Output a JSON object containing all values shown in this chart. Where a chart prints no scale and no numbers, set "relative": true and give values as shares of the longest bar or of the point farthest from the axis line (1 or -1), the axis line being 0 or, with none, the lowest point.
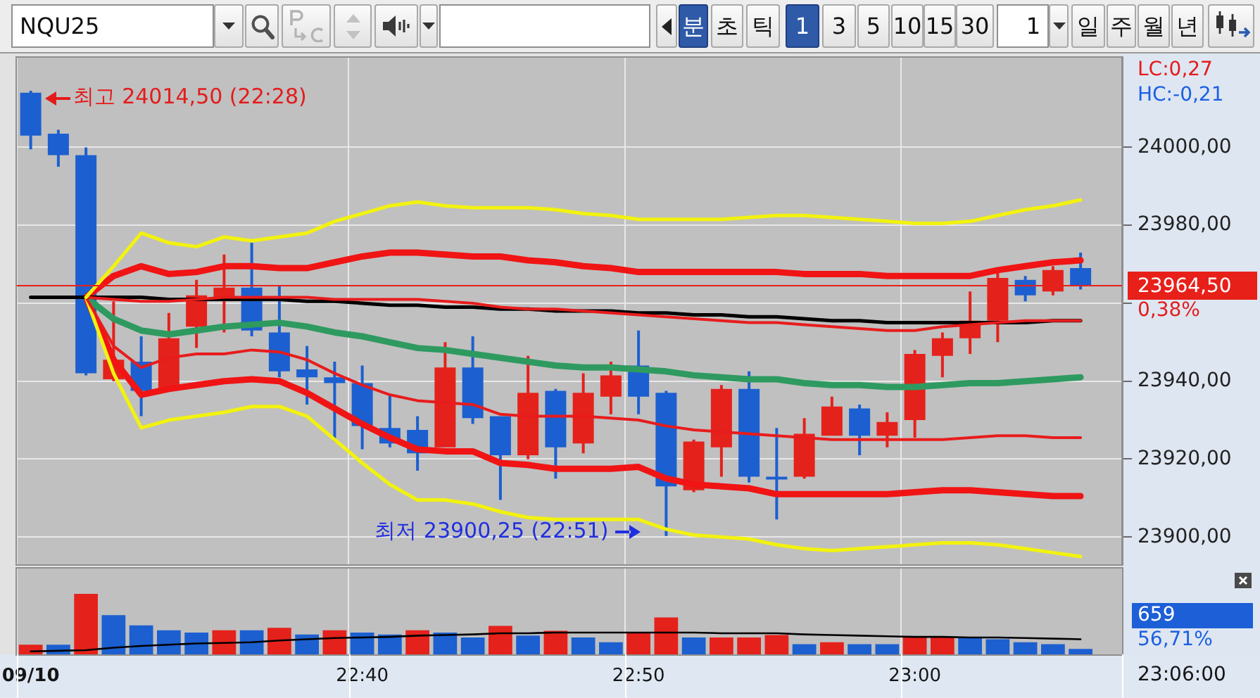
{
  "chart_data": [
    {
      "type": "other",
      "annotations": [
        "NQU25",
        "분",
        "초",
        "틱",
        "1",
        "3",
        "5",
        "10",
        "15",
        "30",
        "1",
        "일",
        "주",
        "월",
        "년"
      ]
    },
    {
      "type": "candlestick",
      "categories": [
        "09/10",
        null,
        null,
        null,
        null,
        null,
        null,
        null,
        null,
        null,
        null,
        null,
        "22:40",
        null,
        null,
        null,
        null,
        null,
        null,
        null,
        null,
        null,
        "22:50",
        null,
        null,
        null,
        null,
        null,
        null,
        null,
        null,
        null,
        "23:00",
        null,
        null,
        null,
        null,
        null,
        null,
        null
      ],
      "ohlc": [
        [
          24014,
          24014.5,
          23999.5,
          24003
        ],
        [
          24003.5,
          24004.5,
          23995,
          23998
        ],
        [
          23998,
          24000,
          23941.5,
          23942
        ],
        [
          23940.5,
          23960.5,
          23940,
          23945.5
        ],
        [
          23945,
          23951.5,
          23931,
          23937.5
        ],
        [
          23938,
          23957.5,
          23938,
          23951
        ],
        [
          23954,
          23966,
          23948.5,
          23962
        ],
        [
          23961,
          23972.5,
          23952.5,
          23964
        ],
        [
          23964,
          23975.5,
          23951.5,
          23953
        ],
        [
          23952.5,
          23964.5,
          23941,
          23942.5
        ],
        [
          23943,
          23949,
          23934,
          23941
        ],
        [
          23941,
          23945,
          23924.5,
          23939.5
        ],
        [
          23939.5,
          23944,
          23922.5,
          23928.5
        ],
        [
          23928,
          23936.5,
          23923,
          23924
        ],
        [
          23927.5,
          23931,
          23917,
          23921.5
        ],
        [
          23923,
          23950,
          23923,
          23943.5
        ],
        [
          23943.5,
          23951.5,
          23929,
          23930.5
        ],
        [
          23931,
          23931,
          23909.5,
          23921
        ],
        [
          23921,
          23946.5,
          23920,
          23937
        ],
        [
          23937.5,
          23938,
          23915,
          23923
        ],
        [
          23924,
          23942,
          23921.5,
          23937
        ],
        [
          23936,
          23945,
          23931.5,
          23941.5
        ],
        [
          23944,
          23953,
          23931.5,
          23936
        ],
        [
          23937,
          23937.5,
          23900.25,
          23913
        ],
        [
          23912,
          23925,
          23911.5,
          23924.5
        ],
        [
          23923,
          23939,
          23915.5,
          23938
        ],
        [
          23938,
          23942.5,
          23914,
          23915.5
        ],
        [
          23915.5,
          23928,
          23904.5,
          23915
        ],
        [
          23915.5,
          23930.5,
          23915,
          23926.5
        ],
        [
          23926,
          23936,
          23926,
          23933.5
        ],
        [
          23933,
          23934,
          23921,
          23926
        ],
        [
          23926,
          23932,
          23923,
          23929.5
        ],
        [
          23930,
          23948,
          23925.5,
          23947
        ],
        [
          23946.5,
          23952.5,
          23941,
          23951
        ],
        [
          23951,
          23963,
          23947,
          23955.5
        ],
        [
          23955.5,
          23968,
          23950,
          23966.5
        ],
        [
          23966,
          23967,
          23960.5,
          23962
        ],
        [
          23963,
          23969.5,
          23962,
          23968.5
        ],
        [
          23969,
          23973,
          23963.5,
          23964.5
        ],
        null
      ],
      "colors": [
        "#1c5fd0",
        "#1c5fd0",
        "#1c5fd0",
        "#e5211b",
        "#1c5fd0",
        "#e5211b",
        "#e5211b",
        "#e5211b",
        "#1c5fd0",
        "#1c5fd0",
        "#1c5fd0",
        "#1c5fd0",
        "#1c5fd0",
        "#1c5fd0",
        "#1c5fd0",
        "#e5211b",
        "#1c5fd0",
        "#1c5fd0",
        "#e5211b",
        "#1c5fd0",
        "#e5211b",
        "#e5211b",
        "#1c5fd0",
        "#1c5fd0",
        "#e5211b",
        "#e5211b",
        "#1c5fd0",
        "#1c5fd0",
        "#e5211b",
        "#e5211b",
        "#1c5fd0",
        "#e5211b",
        "#e5211b",
        "#e5211b",
        "#e5211b",
        "#e5211b",
        "#1c5fd0",
        "#e5211b",
        "#1c5fd0",
        null
      ],
      "series": [
        {
          "type": "line",
          "color": "#f2f20f",
          "values": [
            null,
            null,
            23961.5,
            23969.5,
            23978,
            23975.5,
            23974.5,
            23977,
            23976,
            23977,
            23978,
            23981,
            23983,
            23985,
            23986,
            23985,
            23984.5,
            23984.5,
            23984.5,
            23984,
            23983,
            23982.5,
            23981.5,
            23981.5,
            23981.5,
            23981.5,
            23982,
            23982.5,
            23982.5,
            23982,
            23981.5,
            23981,
            23980.5,
            23980.5,
            23981,
            23982.5,
            23984,
            23985,
            23986.5,
            null
          ]
        },
        {
          "type": "line",
          "color": "#f01414",
          "values": [
            null,
            null,
            23961.5,
            23967,
            23969.5,
            23967.5,
            23968,
            23969.5,
            23969.5,
            23969,
            23969,
            23970.5,
            23972,
            23973,
            23973,
            23972.5,
            23972,
            23972,
            23971,
            23970.5,
            23969.5,
            23969,
            23968,
            23968,
            23968,
            23968,
            23968,
            23968,
            23967.5,
            23967.5,
            23967.5,
            23967,
            23967,
            23967,
            23967,
            23968.5,
            23969.5,
            23970.5,
            23971,
            null
          ]
        },
        {
          "type": "line",
          "color": "#e81c1c",
          "values": [
            null,
            null,
            23961.5,
            23961,
            23960.5,
            23960.5,
            23961,
            23961.5,
            23961.5,
            23961.5,
            23961.5,
            23961,
            23961,
            23961,
            23961,
            23960.5,
            23960,
            23959,
            23958.5,
            23958.5,
            23958,
            23957.5,
            23957,
            23956.5,
            23956,
            23955.5,
            23955,
            23955,
            23954.5,
            23954,
            23953.5,
            23953,
            23953,
            23954,
            23954.5,
            23955,
            23955.5,
            23955.5,
            23955.5,
            null
          ]
        },
        {
          "type": "line",
          "color": "#000000",
          "values": [
            23961.5,
            23961.5,
            23961.5,
            23961.5,
            23961.5,
            23961,
            23961,
            23961,
            23961,
            23961,
            23960.5,
            23960.5,
            23960,
            23959.5,
            23959.5,
            23959,
            23959,
            23958.5,
            23958.5,
            23958,
            23958,
            23958,
            23957.5,
            23957.5,
            23957,
            23957,
            23956.5,
            23956.5,
            23956,
            23955.5,
            23955.5,
            23955,
            23955,
            23955,
            23955,
            23955,
            23955,
            23955.5,
            23955.5,
            null
          ]
        },
        {
          "type": "line",
          "color": "#2e9a60",
          "values": [
            null,
            null,
            23961.5,
            23956,
            23953,
            23952,
            23953,
            23954,
            23954.5,
            23955,
            23954,
            23952.5,
            23951.5,
            23950,
            23948.5,
            23948,
            23947,
            23946,
            23945,
            23944,
            23943.5,
            23943.5,
            23943,
            23942.5,
            23941.5,
            23941,
            23940.5,
            23940.5,
            23939.5,
            23939,
            23939,
            23938.5,
            23938.5,
            23939,
            23939.5,
            23939.5,
            23940,
            23940.5,
            23941,
            null
          ]
        },
        {
          "type": "line",
          "color": "#e81c1c",
          "values": [
            null,
            null,
            23961.5,
            23949,
            23943.5,
            23946,
            23947,
            23947,
            23948,
            23947.5,
            23945.5,
            23942,
            23939,
            23936.5,
            23935,
            23934.5,
            23934,
            23931.5,
            23931,
            23931,
            23931,
            23930.5,
            23930,
            23928.5,
            23927.5,
            23927,
            23926.5,
            23926,
            23925.5,
            23925,
            23925,
            23925,
            23925,
            23925,
            23925.5,
            23926,
            23926,
            23925.5,
            23925.5,
            null
          ]
        },
        {
          "type": "line",
          "color": "#f01414",
          "values": [
            null,
            null,
            23961.5,
            23945.5,
            23936.5,
            23938,
            23939,
            23940,
            23940.5,
            23940,
            23937,
            23933,
            23929,
            23925.5,
            23922.5,
            23922,
            23922,
            23919,
            23918.5,
            23917.5,
            23917.5,
            23917.5,
            23918,
            23915,
            23913.5,
            23913,
            23912.5,
            23911,
            23911,
            23911,
            23911,
            23911,
            23911.5,
            23912,
            23912,
            23911.5,
            23911,
            23910.5,
            23910.5,
            null
          ]
        },
        {
          "type": "line",
          "color": "#f2f20f",
          "values": [
            null,
            null,
            23961.5,
            23942,
            23928,
            23930,
            23931,
            23932,
            23933.5,
            23933.5,
            23931,
            23925,
            23919,
            23913.5,
            23909.5,
            23909.5,
            23908.5,
            23906.5,
            23905,
            23904.5,
            23904.5,
            23904.5,
            23904.5,
            23902,
            23900.5,
            23900,
            23899.5,
            23898,
            23897,
            23896.5,
            23897,
            23897.5,
            23898,
            23898.5,
            23898.5,
            23898,
            23897,
            23896,
            23895,
            null
          ]
        }
      ],
      "ylim": [
        23893,
        24023
      ],
      "yticks": [
        {
          "value": 23900,
          "label": "23900,00"
        },
        {
          "value": 23920,
          "label": "23920,00"
        },
        {
          "value": 23940,
          "label": "23940,00"
        },
        {
          "value": 23960,
          "label": null
        },
        {
          "value": 23980,
          "label": "23980,00"
        },
        {
          "value": 24000,
          "label": "24000,00"
        }
      ],
      "grid": true,
      "tick_labels": "y",
      "ref_lines": [
        {
          "axis": "y",
          "value": 23964.5,
          "label": "23964,50",
          "color": "#e8201a"
        }
      ],
      "annotations": [
        "LC:0,27",
        "HC:-0,21",
        {
          "text": "최고 24014,50 (22:28)",
          "x": "09/10",
          "y": 24014.5
        },
        "최저 23900,25 (22:51)",
        "0,38%"
      ]
    },
    {
      "type": "bar",
      "relative": true,
      "categories": [
        "09/10",
        null,
        null,
        null,
        null,
        null,
        null,
        null,
        null,
        null,
        null,
        null,
        "22:40",
        null,
        null,
        null,
        null,
        null,
        null,
        null,
        null,
        null,
        "22:50",
        null,
        null,
        null,
        null,
        null,
        null,
        null,
        null,
        null,
        "23:00",
        null,
        null,
        null,
        null,
        null,
        null,
        null
      ],
      "series": [
        {
          "type": "bar",
          "colors": [
            "#e5211b",
            "#1c5fd0",
            "#e5211b",
            "#1c5fd0",
            "#1c5fd0",
            "#1c5fd0",
            "#1c5fd0",
            "#e5211b",
            "#1c5fd0",
            "#e5211b",
            "#1c5fd0",
            "#e5211b",
            "#1c5fd0",
            "#1c5fd0",
            "#e5211b",
            "#1c5fd0",
            "#1c5fd0",
            "#e5211b",
            "#1c5fd0",
            "#e5211b",
            "#1c5fd0",
            "#1c5fd0",
            "#e5211b",
            "#e5211b",
            "#1c5fd0",
            "#e5211b",
            "#e5211b",
            "#e5211b",
            "#1c5fd0",
            "#e5211b",
            "#1c5fd0",
            "#1c5fd0",
            "#e5211b",
            "#e5211b",
            "#1c5fd0",
            "#1c5fd0",
            "#1c5fd0",
            "#1c5fd0",
            "#1c5fd0",
            null
          ],
          "values": [
            0.16,
            0.16,
            1,
            0.65,
            0.48,
            0.4,
            0.36,
            0.4,
            0.4,
            0.44,
            0.33,
            0.4,
            0.36,
            0.33,
            0.4,
            0.36,
            0.28,
            0.47,
            0.31,
            0.39,
            0.28,
            0.2,
            0.36,
            0.61,
            0.28,
            0.28,
            0.28,
            0.32,
            0.17,
            0.2,
            0.17,
            0.17,
            0.29,
            0.29,
            0.29,
            0.25,
            0.2,
            0.17,
            0.09,
            null
          ]
        },
        {
          "type": "line",
          "color": "#000000",
          "values": [
            0.05,
            0.06,
            0.07,
            0.11,
            0.14,
            0.16,
            0.18,
            0.19,
            0.2,
            0.23,
            0.25,
            0.27,
            0.28,
            0.29,
            0.31,
            0.32,
            0.33,
            0.35,
            0.35,
            0.36,
            0.36,
            0.36,
            0.36,
            0.36,
            0.36,
            0.35,
            0.35,
            0.35,
            0.33,
            0.32,
            0.31,
            0.3,
            0.29,
            0.29,
            0.28,
            0.28,
            0.27,
            0.26,
            0.25,
            null
          ]
        }
      ],
      "grid": "x",
      "tick_labels": "x",
      "annotations": [
        "659",
        "56,71%",
        "23:06:00"
      ]
    }
  ]
}
